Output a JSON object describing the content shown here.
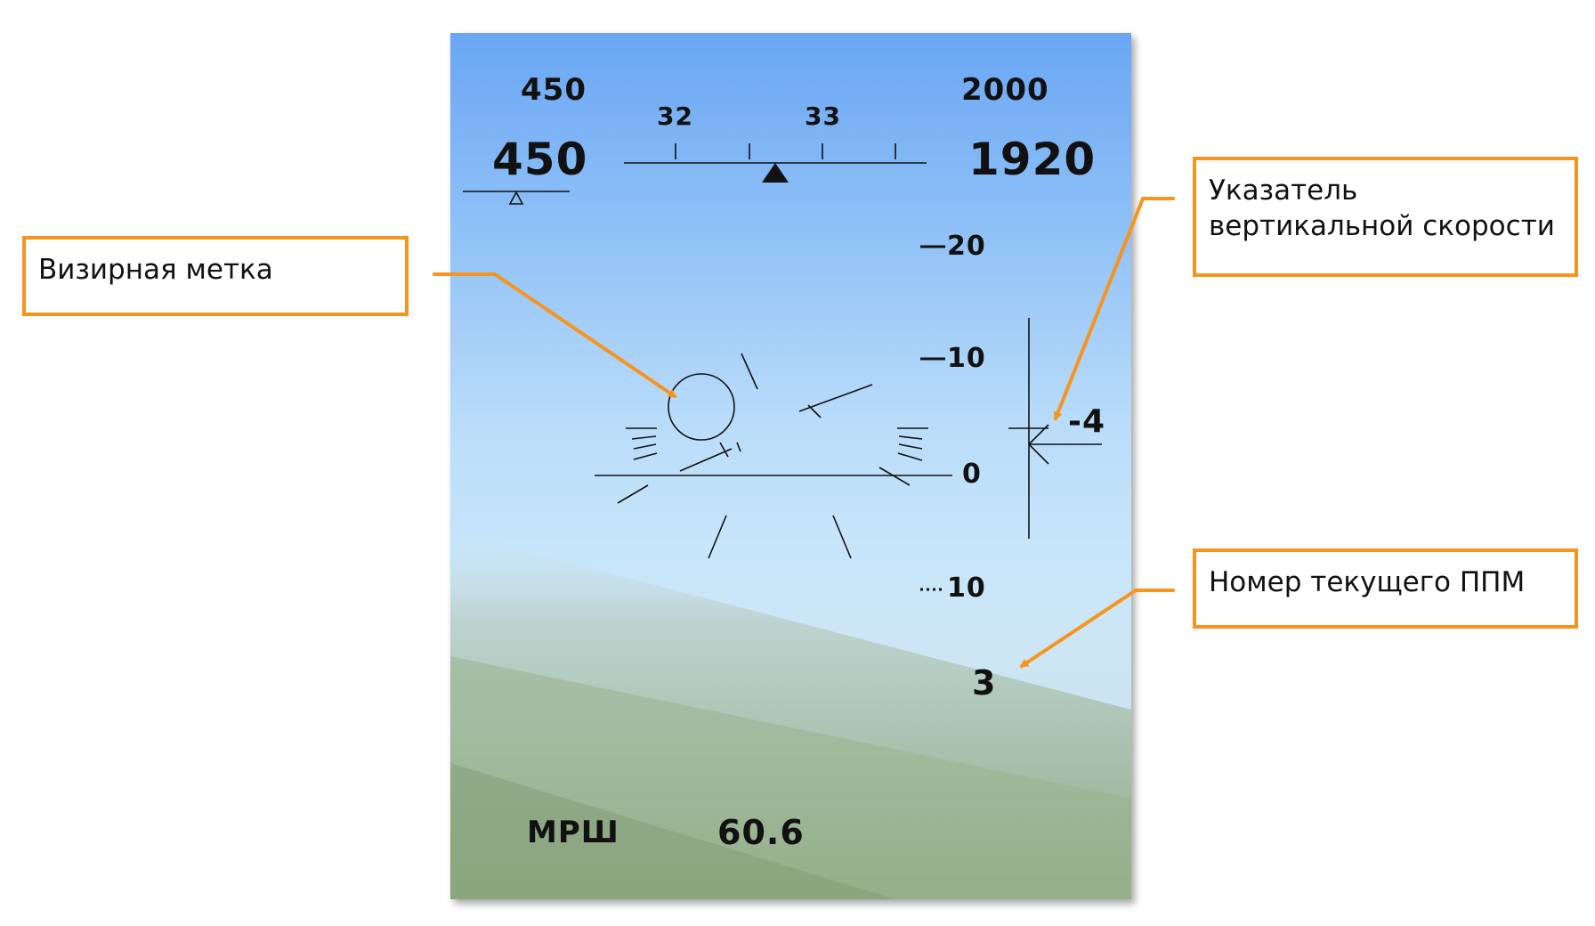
{
  "hud": {
    "speed_command": "450",
    "speed_current": "450",
    "altitude_command": "2000",
    "altitude_current": "1920",
    "heading_scale": {
      "left": "32",
      "right": "33"
    },
    "pitch_ladder": {
      "upper": "20",
      "mid": "10",
      "zero": "0",
      "lower": "10"
    },
    "vertical_speed": "-4",
    "waypoint_number": "3",
    "weapon_mode": "МРШ",
    "range_readout": "60.6"
  },
  "colors": {
    "callout_border": "#f7941d",
    "hud_symbology": "#111111",
    "sky_top": "#6aa6f4",
    "sky_horizon": "#c8e6fb"
  },
  "callouts": {
    "aim_mark": "Визирная метка",
    "vsi": "Указатель вертикальной скорости",
    "waypoint": "Номер текущего ППМ"
  }
}
